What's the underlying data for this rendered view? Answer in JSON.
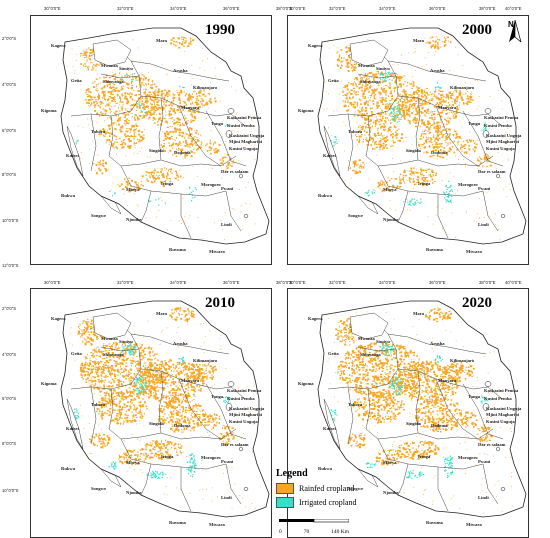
{
  "panels": [
    {
      "year": "1990",
      "show_north": true
    },
    {
      "year": "2000",
      "show_north": true
    },
    {
      "year": "2010",
      "show_north": false
    },
    {
      "year": "2020",
      "show_north": false
    }
  ],
  "north_label": "N",
  "top_longitudes": [
    "30°0'0\"E",
    "32°0'0\"E",
    "34°0'0\"E",
    "36°0'0\"E",
    "38°0'0\"E",
    "40°0'0\"E"
  ],
  "bottom_longitudes": [
    "30°0'0\"E",
    "32°0'0\"E",
    "34°0'0\"E",
    "36°0'0\"E",
    "38°0'0\"E",
    "40°0'0\"E"
  ],
  "left_latitudes_top": [
    "2°0'0\"S",
    "4°0'0\"S",
    "6°0'0\"S",
    "8°0'0\"S",
    "10°0'0\"S",
    "12°0'0\"S"
  ],
  "left_latitudes_bottom": [
    "2°0'0\"S",
    "4°0'0\"S",
    "6°0'0\"S",
    "8°0'0\"S",
    "10°0'0\"S"
  ],
  "region_labels": [
    "Kagera",
    "Mara",
    "Mwanza",
    "Geita",
    "Simiyu",
    "Shinyanga",
    "Arusha",
    "Kilimanjaro",
    "Kigoma",
    "Tabora",
    "Manyara",
    "Tanga",
    "Singida",
    "Dodoma",
    "Katavi",
    "Morogoro",
    "Pwani",
    "Dar es salaam",
    "Rukwa",
    "Mbeya",
    "Iringa",
    "Njombe",
    "Songwe",
    "Lindi",
    "Ruvuma",
    "Mtwara",
    "Kaskazini Pemba",
    "Kusini Pemba",
    "Kaskazini Unguja",
    "Mjini Magharibi",
    "Kusini Unguja"
  ],
  "legend": {
    "title": "Legend",
    "items": [
      {
        "label": "Rainfed cropland",
        "color": "#f5a623"
      },
      {
        "label": "Irrigated cropland",
        "color": "#34e0c8"
      }
    ]
  },
  "scale": {
    "labels": [
      "0",
      "70",
      "140 Km"
    ]
  }
}
